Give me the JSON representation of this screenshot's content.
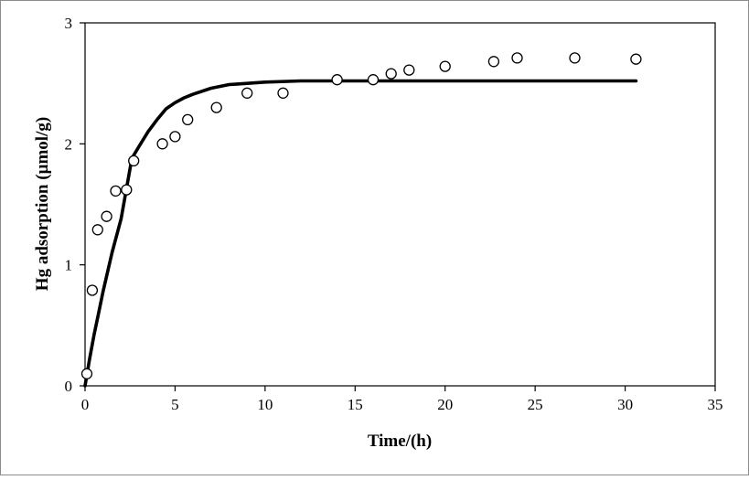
{
  "chart_data": {
    "type": "scatter",
    "title": "",
    "xlabel": "Time/(h)",
    "ylabel": "Hg adsorption  (µmol/g)",
    "xlim": [
      0,
      35
    ],
    "ylim": [
      0,
      3
    ],
    "x_ticks": [
      "0",
      "5",
      "10",
      "15",
      "20",
      "25",
      "30",
      "35"
    ],
    "y_ticks": [
      "0",
      "1",
      "2",
      "3"
    ],
    "grid": false,
    "legend": "none",
    "series": [
      {
        "kind": "markers",
        "marker": "open-circle",
        "color": "#000000",
        "points": [
          [
            0.1,
            0.1
          ],
          [
            0.4,
            0.79
          ],
          [
            0.7,
            1.29
          ],
          [
            1.2,
            1.4
          ],
          [
            1.7,
            1.61
          ],
          [
            2.3,
            1.62
          ],
          [
            2.7,
            1.86
          ],
          [
            4.3,
            2.0
          ],
          [
            5.0,
            2.06
          ],
          [
            5.7,
            2.2
          ],
          [
            7.3,
            2.3
          ],
          [
            9.0,
            2.42
          ],
          [
            11.0,
            2.42
          ],
          [
            14.0,
            2.53
          ],
          [
            16.0,
            2.53
          ],
          [
            17.0,
            2.58
          ],
          [
            18.0,
            2.61
          ],
          [
            20.0,
            2.64
          ],
          [
            22.7,
            2.68
          ],
          [
            24.0,
            2.71
          ],
          [
            27.2,
            2.71
          ],
          [
            30.6,
            2.7
          ]
        ]
      },
      {
        "kind": "curve",
        "color": "#000000",
        "points": [
          [
            0.0,
            0.0
          ],
          [
            0.25,
            0.22
          ],
          [
            0.5,
            0.42
          ],
          [
            0.75,
            0.6
          ],
          [
            1.0,
            0.78
          ],
          [
            1.5,
            1.1
          ],
          [
            2.0,
            1.38
          ],
          [
            2.6,
            1.88
          ],
          [
            3.0,
            1.98
          ],
          [
            3.5,
            2.1
          ],
          [
            4.0,
            2.2
          ],
          [
            4.5,
            2.29
          ],
          [
            5.0,
            2.34
          ],
          [
            5.5,
            2.38
          ],
          [
            6.0,
            2.41
          ],
          [
            7.0,
            2.46
          ],
          [
            8.0,
            2.49
          ],
          [
            9.0,
            2.5
          ],
          [
            10.0,
            2.51
          ],
          [
            12.0,
            2.52
          ],
          [
            15.0,
            2.52
          ],
          [
            20.0,
            2.52
          ],
          [
            25.0,
            2.52
          ],
          [
            30.6,
            2.52
          ]
        ]
      }
    ]
  }
}
